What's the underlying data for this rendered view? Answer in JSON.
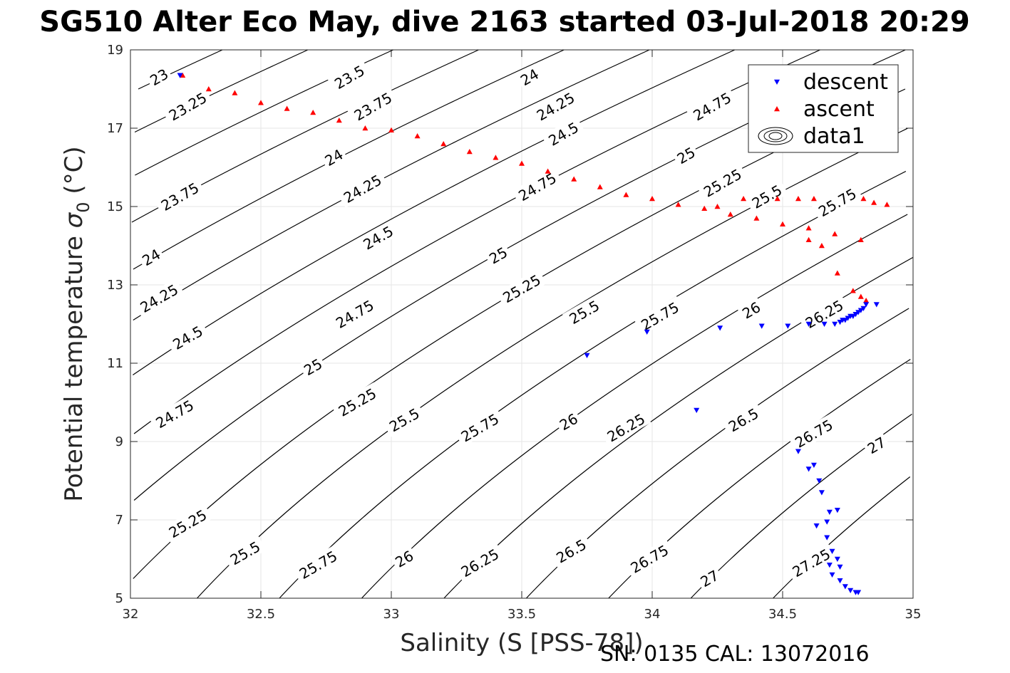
{
  "title": "SG510 Alter Eco May, dive 2163 started 03-Jul-2018 20:29",
  "footer": "SN: 0135  CAL: 13072016",
  "chart_data": {
    "type": "scatter",
    "xlabel": "Salinity (S [PSS-78])",
    "ylabel": "Potential temperature σ 0 (°C)",
    "ylabel_parts": {
      "main": "Potential temperature ",
      "symbol": "σ",
      "sub": "0",
      "unit": " (°C)"
    },
    "xlim": [
      32,
      35
    ],
    "ylim": [
      5,
      19
    ],
    "xticks": [
      "32",
      "32.5",
      "33",
      "33.5",
      "34",
      "34.5",
      "35"
    ],
    "yticks": [
      "5",
      "7",
      "9",
      "11",
      "13",
      "15",
      "17",
      "19"
    ],
    "grid": true,
    "legend_position": "top-right",
    "legend": [
      {
        "label": "descent",
        "marker": "triangle-down",
        "color": "#0000ff"
      },
      {
        "label": "ascent",
        "marker": "triangle-up",
        "color": "#ff0000"
      },
      {
        "label": "data1",
        "marker": "contour",
        "color": "#000000"
      }
    ],
    "contour_levels": [
      "23",
      "23.25",
      "23.5",
      "23.75",
      "24",
      "24.25",
      "24.5",
      "24.75",
      "25",
      "25.25",
      "25.5",
      "25.75",
      "26",
      "26.25",
      "26.5",
      "26.75",
      "27",
      "27.25"
    ],
    "contour_labels": [
      {
        "text": "23",
        "s": 32.11,
        "t": 18.3
      },
      {
        "text": "23.25",
        "s": 32.22,
        "t": 17.55
      },
      {
        "text": "23.5",
        "s": 32.84,
        "t": 18.3
      },
      {
        "text": "23.75",
        "s": 32.93,
        "t": 17.55
      },
      {
        "text": "24",
        "s": 33.53,
        "t": 18.3
      },
      {
        "text": "24.25",
        "s": 33.63,
        "t": 17.55
      },
      {
        "text": "24.5",
        "s": 33.66,
        "t": 16.85
      },
      {
        "text": "24.75",
        "s": 34.23,
        "t": 17.55
      },
      {
        "text": "25",
        "s": 34.85,
        "t": 18.3
      },
      {
        "text": "23.75",
        "s": 32.19,
        "t": 15.25
      },
      {
        "text": "24",
        "s": 32.78,
        "t": 16.25
      },
      {
        "text": "24.25",
        "s": 32.89,
        "t": 15.45
      },
      {
        "text": "24.5",
        "s": 32.95,
        "t": 14.2
      },
      {
        "text": "24.75",
        "s": 33.56,
        "t": 15.5
      },
      {
        "text": "25",
        "s": 34.13,
        "t": 16.3
      },
      {
        "text": "25.25",
        "s": 34.27,
        "t": 15.6
      },
      {
        "text": "25.5",
        "s": 34.44,
        "t": 15.25
      },
      {
        "text": "25.75",
        "s": 34.71,
        "t": 15.1
      },
      {
        "text": "24",
        "s": 32.08,
        "t": 13.7
      },
      {
        "text": "24.25",
        "s": 32.11,
        "t": 12.65
      },
      {
        "text": "25",
        "s": 33.41,
        "t": 13.75
      },
      {
        "text": "25.25",
        "s": 33.5,
        "t": 12.9
      },
      {
        "text": "25.5",
        "s": 33.74,
        "t": 12.3
      },
      {
        "text": "25.75",
        "s": 34.03,
        "t": 12.2
      },
      {
        "text": "26",
        "s": 34.38,
        "t": 12.35
      },
      {
        "text": "26.25",
        "s": 34.66,
        "t": 12.25
      },
      {
        "text": "24.5",
        "s": 32.22,
        "t": 11.65
      },
      {
        "text": "24.75",
        "s": 32.86,
        "t": 12.25
      },
      {
        "text": "25",
        "s": 32.7,
        "t": 10.9
      },
      {
        "text": "25.25",
        "s": 32.87,
        "t": 10.0
      },
      {
        "text": "25.5",
        "s": 33.05,
        "t": 9.55
      },
      {
        "text": "25.75",
        "s": 33.34,
        "t": 9.35
      },
      {
        "text": "26",
        "s": 33.68,
        "t": 9.5
      },
      {
        "text": "26.25",
        "s": 33.9,
        "t": 9.35
      },
      {
        "text": "26.5",
        "s": 34.35,
        "t": 9.55
      },
      {
        "text": "26.75",
        "s": 34.62,
        "t": 9.2
      },
      {
        "text": "27",
        "s": 34.86,
        "t": 8.9
      },
      {
        "text": "24.75",
        "s": 32.17,
        "t": 9.7
      },
      {
        "text": "25.25",
        "s": 32.22,
        "t": 6.9
      },
      {
        "text": "25.5",
        "s": 32.44,
        "t": 6.15
      },
      {
        "text": "25.75",
        "s": 32.72,
        "t": 5.85
      },
      {
        "text": "26",
        "s": 33.05,
        "t": 6.0
      },
      {
        "text": "26.25",
        "s": 33.34,
        "t": 5.9
      },
      {
        "text": "26.5",
        "s": 33.69,
        "t": 6.2
      },
      {
        "text": "26.75",
        "s": 33.99,
        "t": 6.0
      },
      {
        "text": "27",
        "s": 34.22,
        "t": 5.5
      },
      {
        "text": "27.25",
        "s": 34.61,
        "t": 5.9
      }
    ],
    "series": [
      {
        "name": "descent",
        "marker": "triangle-down",
        "color": "#0000ff",
        "x": [
          32.19,
          33.75,
          33.98,
          34.17,
          34.26,
          34.42,
          34.52,
          34.56,
          34.6,
          34.6,
          34.62,
          34.64,
          34.63,
          34.65,
          34.66,
          34.67,
          34.68,
          34.69,
          34.7,
          34.71,
          34.72,
          34.73,
          34.74,
          34.75,
          34.76,
          34.77,
          34.78,
          34.79,
          34.8,
          34.81,
          34.82,
          34.86,
          34.72,
          34.71,
          34.67,
          34.68,
          34.69,
          34.72,
          34.74,
          34.76,
          34.78,
          34.79
        ],
        "y": [
          18.35,
          11.2,
          11.8,
          9.8,
          11.9,
          11.95,
          11.95,
          8.75,
          8.3,
          12.0,
          8.4,
          8.0,
          6.85,
          7.7,
          12.0,
          6.55,
          7.2,
          6.2,
          12.0,
          6.0,
          12.05,
          12.1,
          12.1,
          12.15,
          12.2,
          12.2,
          12.25,
          12.3,
          12.35,
          12.4,
          12.5,
          12.5,
          5.8,
          7.25,
          6.95,
          5.85,
          5.6,
          5.45,
          5.3,
          5.2,
          5.15,
          5.15
        ]
      },
      {
        "name": "ascent",
        "marker": "triangle-up",
        "color": "#ff0000",
        "x": [
          32.2,
          32.3,
          32.4,
          32.5,
          32.6,
          32.7,
          32.8,
          32.9,
          33.0,
          33.1,
          33.2,
          33.3,
          33.4,
          33.5,
          33.6,
          33.7,
          33.8,
          33.9,
          34.0,
          34.1,
          34.2,
          34.3,
          34.4,
          34.5,
          34.6,
          34.7,
          34.8,
          34.85,
          34.9,
          34.25,
          34.35,
          34.48,
          34.56,
          34.62,
          34.6,
          34.65,
          34.71,
          34.77,
          34.8,
          34.82,
          34.81
        ],
        "y": [
          18.35,
          18.0,
          17.9,
          17.65,
          17.5,
          17.4,
          17.2,
          17.0,
          16.95,
          16.8,
          16.6,
          16.4,
          16.25,
          16.1,
          15.9,
          15.7,
          15.5,
          15.3,
          15.2,
          15.05,
          14.95,
          14.8,
          14.7,
          14.55,
          14.45,
          14.3,
          14.15,
          15.1,
          15.05,
          15.0,
          15.2,
          15.2,
          15.2,
          15.2,
          14.15,
          14.0,
          13.3,
          12.85,
          12.7,
          12.6,
          15.2
        ]
      }
    ]
  }
}
